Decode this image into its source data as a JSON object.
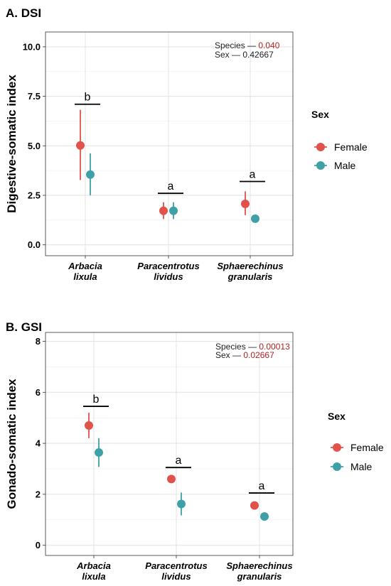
{
  "chart_data": [
    {
      "type": "scatter",
      "panel_title": "A. DSI",
      "xlabel": "",
      "ylabel": "Digestive-somatic index",
      "ylim": [
        -0.55,
        10.75
      ],
      "yticks": [
        "0.0",
        "2.5",
        "5.0",
        "7.5",
        "10.0"
      ],
      "ytick_values": [
        0,
        2.5,
        5,
        7.5,
        10
      ],
      "grid": true,
      "categories": [
        {
          "line1": "Arbacia",
          "line2": "lixula"
        },
        {
          "line1": "Paracentrotus",
          "line2": "lividus"
        },
        {
          "line1": "Sphaerechinus",
          "line2": "granularis"
        }
      ],
      "series": [
        {
          "name": "Female",
          "color": "#e1524a",
          "values": [
            5.02,
            1.72,
            2.07
          ],
          "lower": [
            3.27,
            1.3,
            1.5
          ],
          "upper": [
            6.82,
            2.15,
            2.7
          ]
        },
        {
          "name": "Male",
          "color": "#3fa1a8",
          "values": [
            3.55,
            1.72,
            1.32
          ],
          "lower": [
            2.5,
            1.3,
            1.32
          ],
          "upper": [
            4.62,
            2.15,
            1.32
          ]
        }
      ],
      "group_letters": [
        {
          "label": "b",
          "y": 7.1
        },
        {
          "label": "a",
          "y": 2.6
        },
        {
          "label": "a",
          "y": 3.2
        }
      ],
      "stats": [
        {
          "label": "Species — ",
          "value": "0.040",
          "value_color": "#b22222"
        },
        {
          "label": "Sex — ",
          "value": "0.42667",
          "value_color": "#222222"
        }
      ],
      "legend": {
        "title": "Sex",
        "position": "right",
        "entries": [
          "Female",
          "Male"
        ]
      }
    },
    {
      "type": "scatter",
      "panel_title": "B. GSI",
      "xlabel": "",
      "ylabel": "Gonado-somatic index",
      "ylim": [
        -0.4,
        8.35
      ],
      "yticks": [
        "0",
        "2",
        "4",
        "6",
        "8"
      ],
      "ytick_values": [
        0,
        2,
        4,
        6,
        8
      ],
      "grid": true,
      "categories": [
        {
          "line1": "Arbacia",
          "line2": "lixula"
        },
        {
          "line1": "Paracentrotus",
          "line2": "lividus"
        },
        {
          "line1": "Sphaerechinus",
          "line2": "granularis"
        }
      ],
      "series": [
        {
          "name": "Female",
          "color": "#e1524a",
          "values": [
            4.7,
            2.6,
            1.56
          ],
          "lower": [
            4.2,
            2.45,
            1.56
          ],
          "upper": [
            5.2,
            2.75,
            1.56
          ]
        },
        {
          "name": "Male",
          "color": "#3fa1a8",
          "values": [
            3.64,
            1.62,
            1.13
          ],
          "lower": [
            3.07,
            1.17,
            1.13
          ],
          "upper": [
            4.2,
            2.07,
            1.13
          ]
        }
      ],
      "group_letters": [
        {
          "label": "b",
          "y": 5.45
        },
        {
          "label": "a",
          "y": 3.05
        },
        {
          "label": "a",
          "y": 2.05
        }
      ],
      "stats": [
        {
          "label": "Species — ",
          "value": "0.00013",
          "value_color": "#b22222"
        },
        {
          "label": "Sex — ",
          "value": "0.02667",
          "value_color": "#b22222"
        }
      ],
      "legend": {
        "title": "Sex",
        "position": "right",
        "entries": [
          "Female",
          "Male"
        ]
      }
    }
  ]
}
